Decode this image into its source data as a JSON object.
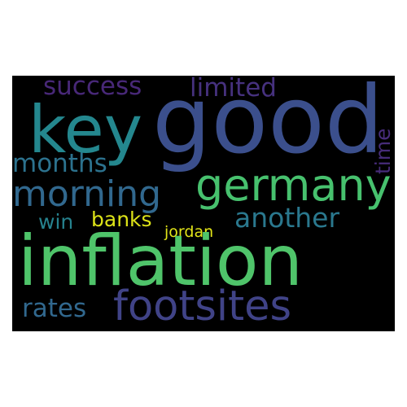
{
  "cloud": {
    "background_color": "#000000",
    "words": {
      "good": {
        "text": "good",
        "color": "#3b4f8c"
      },
      "inflation": {
        "text": "inflation",
        "color": "#4fc46a"
      },
      "key": {
        "text": "key",
        "color": "#24878e"
      },
      "germany": {
        "text": "germany",
        "color": "#47c16e"
      },
      "footsites": {
        "text": "footsites",
        "color": "#404387"
      },
      "morning": {
        "text": "morning",
        "color": "#31688e"
      },
      "another": {
        "text": "another",
        "color": "#2a788e"
      },
      "success": {
        "text": "success",
        "color": "#482878"
      },
      "limited": {
        "text": "limited",
        "color": "#46317e"
      },
      "months": {
        "text": "months",
        "color": "#2c728e"
      },
      "rates": {
        "text": "rates",
        "color": "#31688e"
      },
      "time": {
        "text": "time",
        "color": "#472c7a"
      },
      "win": {
        "text": "win",
        "color": "#26828e"
      },
      "banks": {
        "text": "banks",
        "color": "#dde318"
      },
      "jordan": {
        "text": "jordan",
        "color": "#e2e418"
      }
    }
  }
}
